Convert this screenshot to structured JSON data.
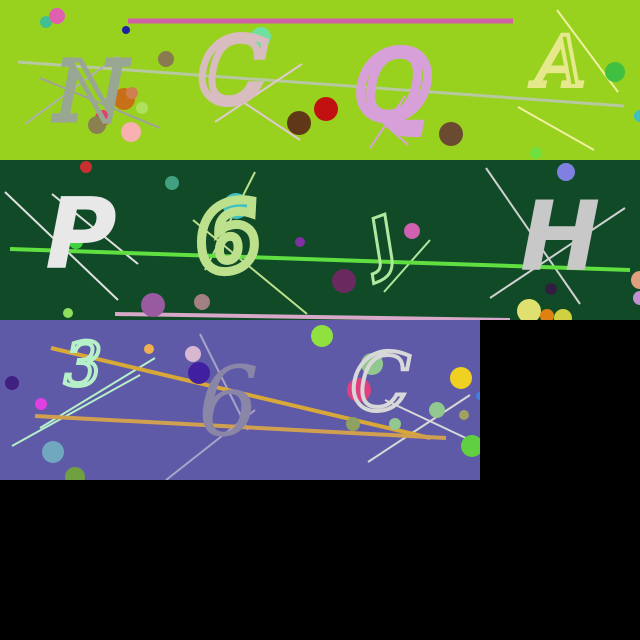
{
  "canvas": {
    "background": "#000000"
  },
  "tiles": [
    {
      "id": "tile-1",
      "background": "#98d21e",
      "glyphs": [
        {
          "text": "N",
          "color": "#9aa694",
          "icon": "curly-n-glyph"
        },
        {
          "text": "C",
          "color": "#d8bcc0",
          "icon": "curly-c-glyph"
        },
        {
          "text": "Q",
          "color": "#d8a0d8",
          "icon": "curly-q-glyph"
        },
        {
          "text": "A",
          "color": "#e6e88c",
          "icon": "curly-a-glyph"
        }
      ]
    },
    {
      "id": "tile-2",
      "background": "#114a27",
      "glyphs": [
        {
          "text": "P",
          "color": "#e8e8e8",
          "icon": "bold-p-glyph"
        },
        {
          "text": "6",
          "color": "#bde08c",
          "icon": "bold-6-glyph"
        },
        {
          "text": "J",
          "color": "#b0e8a0",
          "icon": "outline-j-glyph"
        },
        {
          "text": "H",
          "color": "#c8c8c8",
          "icon": "bold-h-glyph"
        }
      ]
    },
    {
      "id": "tile-3",
      "background": "#5f5aa8",
      "glyphs": [
        {
          "text": "3",
          "color": "#b6f0c8",
          "icon": "curly-3-glyph"
        },
        {
          "text": "6",
          "color": "#8a86a8",
          "icon": "serif-6-glyph"
        },
        {
          "text": "C",
          "color": "#d8d8d8",
          "icon": "curly-c-glyph"
        }
      ]
    }
  ]
}
